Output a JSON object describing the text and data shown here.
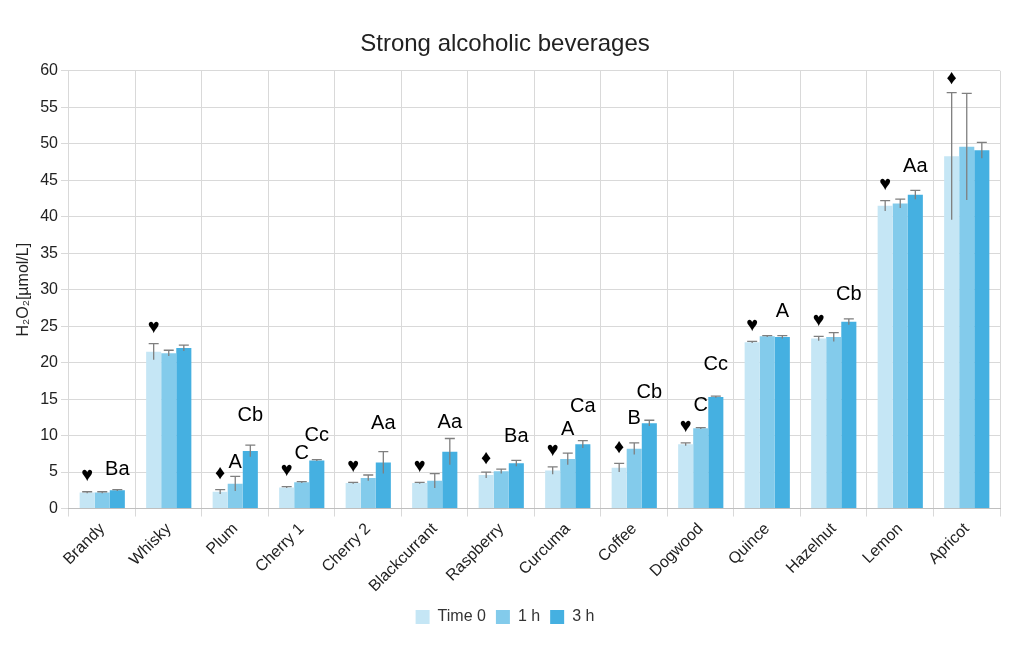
{
  "chart_data": {
    "type": "bar",
    "title": "Strong alcoholic beverages",
    "ylabel": "H₂O₂[µmol/L]",
    "categories": [
      "Brandy",
      "Whisky",
      "Plum",
      "Cherry 1",
      "Cherry 2",
      "Blackcurrant",
      "Raspberry",
      "Curcuma",
      "Coffee",
      "Dogwood",
      "Quince",
      "Hazelnut",
      "Lemon",
      "Apricot"
    ],
    "series": [
      {
        "name": "Time 0",
        "color": "#c5e6f5",
        "values": [
          2.2,
          21.5,
          2.3,
          2.9,
          3.5,
          3.5,
          4.6,
          5.2,
          5.6,
          8.8,
          22.8,
          23.3,
          41.5,
          48.3
        ],
        "errors": [
          0.1,
          1.1,
          0.3,
          0.1,
          0.1,
          0.1,
          0.4,
          0.5,
          0.6,
          0.2,
          0.1,
          0.3,
          0.7,
          8.7
        ]
      },
      {
        "name": "1 h",
        "color": "#83cbeb",
        "values": [
          2.2,
          21.3,
          3.4,
          3.6,
          4.2,
          3.8,
          5.1,
          6.8,
          8.2,
          11.0,
          23.6,
          23.5,
          41.8,
          49.6
        ],
        "errors": [
          0.1,
          0.4,
          1.0,
          0.1,
          0.4,
          1.0,
          0.3,
          0.8,
          0.8,
          0.1,
          0.1,
          0.6,
          0.6,
          7.3
        ]
      },
      {
        "name": "3 h",
        "color": "#45b0e1",
        "values": [
          2.5,
          22.0,
          7.9,
          6.6,
          6.3,
          7.8,
          6.2,
          8.8,
          11.7,
          15.3,
          23.5,
          25.6,
          43.0,
          49.1
        ],
        "errors": [
          0.1,
          0.4,
          0.8,
          0.1,
          1.5,
          1.8,
          0.4,
          0.5,
          0.4,
          0.1,
          0.2,
          0.4,
          0.6,
          1.1
        ]
      }
    ],
    "ylim": [
      0,
      60
    ],
    "yticks": [
      0,
      5,
      10,
      15,
      20,
      25,
      30,
      35,
      40,
      45,
      50,
      55,
      60
    ],
    "grid": true,
    "legend": "bottom",
    "annotations": [
      "♥",
      "Ba",
      "♥",
      "♦",
      "A",
      "Cb",
      "♥",
      "C",
      "Cc",
      "♥",
      "Aa",
      "♥",
      "Aa",
      "♦",
      "Ba",
      "♥",
      "A",
      "Ca",
      "♦",
      "B",
      "Cb",
      "♥",
      "C",
      "Cc",
      "♥",
      "A",
      "♥",
      "Cb",
      "♥",
      "Aa",
      "♦"
    ]
  }
}
